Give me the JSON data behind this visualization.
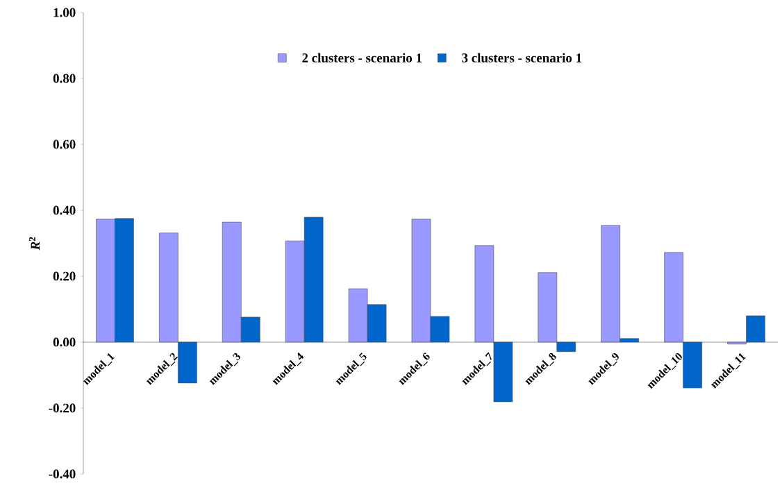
{
  "chart_data": {
    "type": "bar",
    "categories": [
      "model_1",
      "model_2",
      "model_3",
      "model_4",
      "model_5",
      "model_6",
      "model_7",
      "model_8",
      "model_9",
      "model_10",
      "model_11"
    ],
    "series": [
      {
        "name": "2 clusters - scenario 1",
        "color": "#9999ff",
        "values": [
          0.373,
          0.331,
          0.364,
          0.307,
          0.162,
          0.373,
          0.293,
          0.211,
          0.354,
          0.272,
          -0.006
        ]
      },
      {
        "name": "3 clusters - scenario 1",
        "color": "#0066cc",
        "values": [
          0.375,
          -0.124,
          0.076,
          0.379,
          0.114,
          0.078,
          -0.181,
          -0.029,
          0.011,
          -0.139,
          0.08
        ]
      }
    ],
    "ylabel": "*R*$^{2}$",
    "ylim": [
      -0.4,
      1.0
    ],
    "yticks": [
      {
        "value": -0.4,
        "label": "-0.40"
      },
      {
        "value": -0.2,
        "label": "-0.20"
      },
      {
        "value": 0,
        "label": "0.00"
      },
      {
        "value": 0.2,
        "label": "0.20"
      },
      {
        "value": 0.4,
        "label": "0.40"
      },
      {
        "value": 0.6,
        "label": "0.60"
      },
      {
        "value": 0.8,
        "label": "0.80"
      },
      {
        "value": 1.0,
        "label": "1.00"
      }
    ],
    "legend": "top",
    "grid": false
  }
}
